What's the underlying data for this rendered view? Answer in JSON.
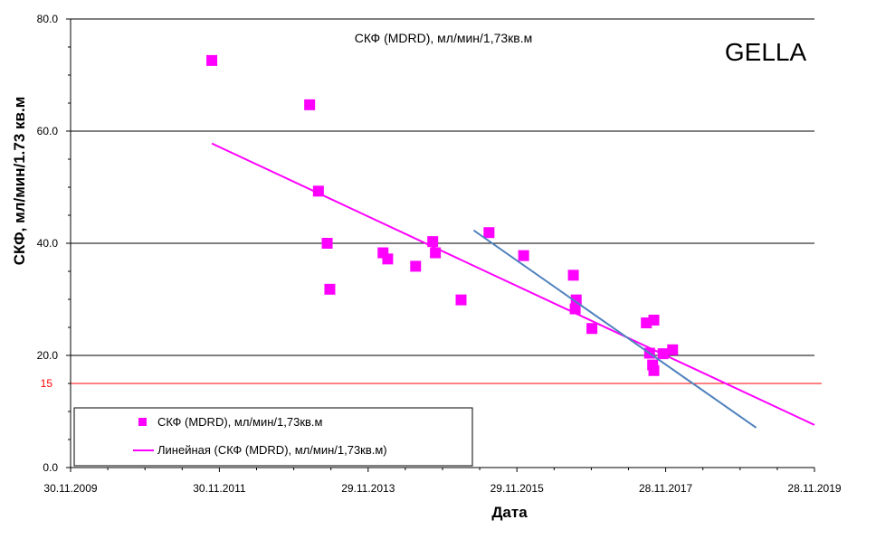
{
  "chart_data": {
    "type": "scatter",
    "title": "СКФ (MDRD), мл/мин/1,73кв.м",
    "watermark": "GELLA",
    "xlabel": "Дата",
    "ylabel": "СКФ, мл/мин/1.73 кв.м",
    "xlim": [
      "2009-11-30",
      "2019-11-28"
    ],
    "ylim": [
      0,
      80
    ],
    "x_ticks": [
      "30.11.2009",
      "30.11.2011",
      "29.11.2013",
      "29.11.2015",
      "28.11.2017",
      "28.11.2019"
    ],
    "y_ticks": [
      "0.0",
      "20.0",
      "40.0",
      "60.0",
      "80.0"
    ],
    "grid": {
      "horizontal": true,
      "lines_at": [
        20,
        40,
        60,
        80
      ]
    },
    "threshold": {
      "value": 15,
      "label": "15",
      "color": "#ff0000"
    },
    "legend": {
      "placement": "bottom-left",
      "entries": [
        "СКФ (MDRD), мл/мин/1,73кв.м",
        "Линейная (СКФ (MDRD), мл/мин/1,73кв.м)"
      ]
    },
    "series": [
      {
        "name": "СКФ (MDRD), мл/мин/1,73кв.м",
        "kind": "scatter",
        "color": "#ff00ff",
        "points": [
          {
            "x": "2011-10-24",
            "y": 72.6
          },
          {
            "x": "2013-02-15",
            "y": 64.7
          },
          {
            "x": "2013-03-30",
            "y": 49.3
          },
          {
            "x": "2013-05-12",
            "y": 40.0
          },
          {
            "x": "2013-05-25",
            "y": 31.8
          },
          {
            "x": "2014-02-10",
            "y": 38.3
          },
          {
            "x": "2014-03-05",
            "y": 37.2
          },
          {
            "x": "2014-07-20",
            "y": 35.9
          },
          {
            "x": "2014-10-12",
            "y": 40.3
          },
          {
            "x": "2014-10-25",
            "y": 38.3
          },
          {
            "x": "2015-02-28",
            "y": 29.9
          },
          {
            "x": "2015-07-15",
            "y": 41.9
          },
          {
            "x": "2016-01-01",
            "y": 37.8
          },
          {
            "x": "2016-09-01",
            "y": 34.3
          },
          {
            "x": "2016-09-15",
            "y": 29.9
          },
          {
            "x": "2016-09-10",
            "y": 28.3
          },
          {
            "x": "2016-12-01",
            "y": 24.8
          },
          {
            "x": "2017-08-25",
            "y": 25.8
          },
          {
            "x": "2017-09-10",
            "y": 20.4
          },
          {
            "x": "2017-10-01",
            "y": 26.3
          },
          {
            "x": "2017-09-25",
            "y": 18.3
          },
          {
            "x": "2017-10-01",
            "y": 17.3
          },
          {
            "x": "2017-11-15",
            "y": 20.3
          },
          {
            "x": "2018-01-01",
            "y": 21.0
          }
        ]
      },
      {
        "name": "Линейная (СКФ (MDRD), мл/мин/1,73кв.м)",
        "kind": "trendline",
        "color": "#ff00ff",
        "points": [
          {
            "x": "2011-10-24",
            "y": 57.8
          },
          {
            "x": "2019-11-28",
            "y": 7.6
          }
        ]
      },
      {
        "kind": "trendline",
        "color": "#4f81bd",
        "points": [
          {
            "x": "2015-05-01",
            "y": 42.3
          },
          {
            "x": "2019-02-15",
            "y": 7.1
          }
        ]
      }
    ]
  }
}
